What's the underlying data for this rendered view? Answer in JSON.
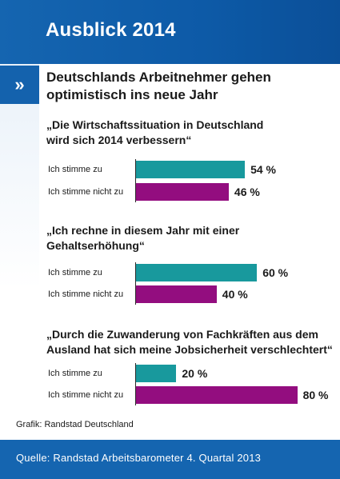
{
  "header": {
    "title": "Ausblick 2014"
  },
  "nav": {
    "chevron": "»"
  },
  "subtitle": "Deutschlands Arbeitnehmer gehen optimistisch ins neue Jahr",
  "chart_data": {
    "type": "bar",
    "orientation": "horizontal",
    "unit": "%",
    "xlim": [
      0,
      100
    ],
    "grid": false,
    "colors": {
      "agree": "#18999d",
      "disagree": "#930d7f"
    },
    "groups": [
      {
        "question": "„Die Wirtschaftssituation in Deutschland wird sich 2014 verbessern“",
        "categories": [
          "Ich stimme zu",
          "Ich stimme nicht zu"
        ],
        "values": [
          54,
          46
        ],
        "labels": [
          "54 %",
          "46 %"
        ]
      },
      {
        "question": "„Ich rechne in diesem Jahr mit einer Gehaltserhöhung“",
        "categories": [
          "Ich stimme zu",
          "Ich stimme nicht zu"
        ],
        "values": [
          60,
          40
        ],
        "labels": [
          "60 %",
          "40 %"
        ]
      },
      {
        "question": "„Durch die Zuwanderung von Fachkräften aus dem Ausland hat sich meine Jobsicherheit verschlechtert“",
        "categories": [
          "Ich stimme zu",
          "Ich stimme nicht zu"
        ],
        "values": [
          20,
          80
        ],
        "labels": [
          "20 %",
          "80 %"
        ]
      }
    ]
  },
  "credit": "Grafik: Randstad Deutschland",
  "footer": {
    "source": "Quelle: Randstad Arbeitsbarometer 4. Quartal 2013"
  }
}
